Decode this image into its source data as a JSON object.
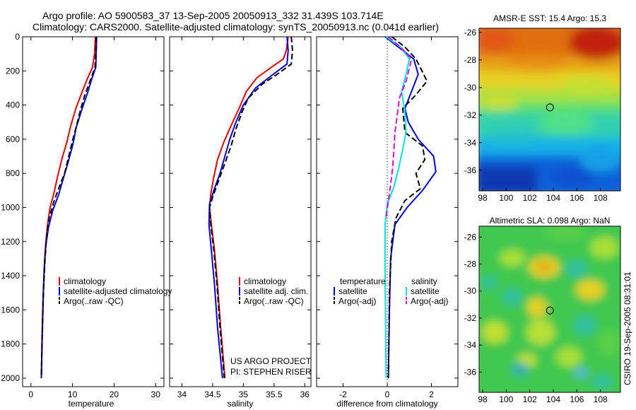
{
  "header": {
    "line1": "Argo profile: AO 5900583_37 13-Sep-2005 20050913_332 31.439S 103.714E",
    "line2": "Climatology: CARS2000. Satellite-adjusted climatology: synTS_20050913.nc (0.041d earlier)"
  },
  "colors": {
    "climatology": "#e00000",
    "satellite": "#0000dd",
    "argo": "#000000",
    "sal_satellite": "#00e0e0",
    "sal_argo": "#e000e0"
  },
  "chart_data": [
    {
      "type": "line",
      "panel": "temperature",
      "xlabel": "temperature",
      "xlim": [
        -2,
        32
      ],
      "ylim": [
        2050,
        0
      ],
      "xticks": [
        "0",
        "10",
        "20",
        "30"
      ],
      "yticks": [
        "0",
        "200",
        "400",
        "600",
        "800",
        "1000",
        "1200",
        "1400",
        "1600",
        "1800",
        "2000"
      ],
      "legend": [
        "climatology",
        "satellite-adjusted climatology",
        "Argo(..raw -QC)"
      ],
      "series": [
        {
          "name": "climatology",
          "color": "red",
          "dash": "solid",
          "points": [
            [
              15.5,
              0
            ],
            [
              15.3,
              100
            ],
            [
              14.8,
              180
            ],
            [
              13.5,
              250
            ],
            [
              12.2,
              330
            ],
            [
              10.8,
              420
            ],
            [
              9.6,
              520
            ],
            [
              8.6,
              620
            ],
            [
              7.4,
              720
            ],
            [
              6.4,
              820
            ],
            [
              5.5,
              920
            ],
            [
              4.6,
              1000
            ],
            [
              4.0,
              1100
            ],
            [
              3.6,
              1200
            ],
            [
              3.3,
              1300
            ],
            [
              3.0,
              1500
            ],
            [
              2.8,
              1700
            ],
            [
              2.5,
              2000
            ]
          ]
        },
        {
          "name": "satellite-adjusted climatology",
          "color": "blue",
          "dash": "solid",
          "points": [
            [
              15.8,
              0
            ],
            [
              15.7,
              100
            ],
            [
              15.6,
              180
            ],
            [
              14.6,
              250
            ],
            [
              13.6,
              330
            ],
            [
              12.2,
              430
            ],
            [
              10.9,
              530
            ],
            [
              10.1,
              630
            ],
            [
              9.0,
              730
            ],
            [
              7.8,
              830
            ],
            [
              6.6,
              930
            ],
            [
              5.2,
              1020
            ],
            [
              4.2,
              1120
            ],
            [
              3.6,
              1220
            ],
            [
              3.2,
              1350
            ],
            [
              2.9,
              1550
            ],
            [
              2.7,
              1750
            ],
            [
              2.5,
              2000
            ]
          ]
        },
        {
          "name": "Argo(..raw -QC)",
          "color": "black",
          "dash": "dashed",
          "points": [
            [
              15.7,
              0
            ],
            [
              15.6,
              100
            ],
            [
              15.4,
              180
            ],
            [
              14.2,
              260
            ],
            [
              13.0,
              340
            ],
            [
              12.0,
              420
            ],
            [
              11.2,
              500
            ],
            [
              10.1,
              600
            ],
            [
              9.1,
              700
            ],
            [
              8.1,
              800
            ],
            [
              6.8,
              880
            ],
            [
              5.6,
              960
            ],
            [
              4.4,
              1060
            ],
            [
              3.8,
              1160
            ],
            [
              3.4,
              1300
            ],
            [
              3.0,
              1500
            ],
            [
              2.7,
              1750
            ],
            [
              2.5,
              2000
            ]
          ]
        }
      ]
    },
    {
      "type": "line",
      "panel": "salinity",
      "xlabel": "salinity",
      "xlim": [
        33.8,
        36.1
      ],
      "ylim": [
        2050,
        0
      ],
      "xticks": [
        "34",
        "34.5",
        "35",
        "35.5",
        "36"
      ],
      "legend": [
        "climatology",
        "satellite adj. clim.",
        "Argo(..raw -QC)"
      ],
      "annotation": [
        "US ARGO PROJECT",
        "PI: STEPHEN RISER"
      ],
      "series": [
        {
          "name": "climatology",
          "color": "red",
          "dash": "solid",
          "points": [
            [
              35.73,
              0
            ],
            [
              35.7,
              80
            ],
            [
              35.65,
              130
            ],
            [
              35.45,
              180
            ],
            [
              35.22,
              240
            ],
            [
              35.05,
              320
            ],
            [
              34.93,
              420
            ],
            [
              34.8,
              520
            ],
            [
              34.68,
              620
            ],
            [
              34.58,
              720
            ],
            [
              34.52,
              820
            ],
            [
              34.47,
              920
            ],
            [
              34.45,
              1000
            ],
            [
              34.48,
              1100
            ],
            [
              34.53,
              1250
            ],
            [
              34.58,
              1450
            ],
            [
              34.63,
              1700
            ],
            [
              34.7,
              2000
            ]
          ]
        },
        {
          "name": "satellite adj. clim.",
          "color": "blue",
          "dash": "solid",
          "points": [
            [
              35.71,
              0
            ],
            [
              35.73,
              80
            ],
            [
              35.71,
              160
            ],
            [
              35.45,
              230
            ],
            [
              35.2,
              300
            ],
            [
              35.0,
              400
            ],
            [
              34.88,
              500
            ],
            [
              34.78,
              600
            ],
            [
              34.7,
              700
            ],
            [
              34.62,
              800
            ],
            [
              34.52,
              900
            ],
            [
              34.45,
              980
            ],
            [
              34.44,
              1100
            ],
            [
              34.48,
              1250
            ],
            [
              34.53,
              1450
            ],
            [
              34.58,
              1700
            ],
            [
              34.66,
              2000
            ]
          ]
        },
        {
          "name": "Argo(..raw -QC)",
          "color": "black",
          "dash": "dashed",
          "points": [
            [
              35.78,
              0
            ],
            [
              35.8,
              80
            ],
            [
              35.78,
              160
            ],
            [
              35.55,
              220
            ],
            [
              35.3,
              280
            ],
            [
              35.08,
              360
            ],
            [
              34.98,
              440
            ],
            [
              34.88,
              540
            ],
            [
              34.8,
              640
            ],
            [
              34.7,
              740
            ],
            [
              34.6,
              840
            ],
            [
              34.5,
              940
            ],
            [
              34.45,
              1000
            ],
            [
              34.47,
              1100
            ],
            [
              34.52,
              1250
            ],
            [
              34.57,
              1450
            ],
            [
              34.62,
              1700
            ],
            [
              34.69,
              2000
            ]
          ]
        }
      ]
    },
    {
      "type": "line",
      "panel": "difference",
      "xlabel": "difference from climatology",
      "xlim": [
        -3.2,
        3.2
      ],
      "ylim": [
        2050,
        0
      ],
      "xticks": [
        "-2",
        "0",
        "2"
      ],
      "legend_groups": [
        {
          "heading": "temperature",
          "items": [
            "satellite",
            "Argo(-adj)"
          ]
        },
        {
          "heading": "salinity",
          "items": [
            "satellite",
            "Argo(-adj)"
          ]
        }
      ],
      "series": [
        {
          "name": "temperature satellite",
          "color": "blue",
          "dash": "solid",
          "points": [
            [
              -0.1,
              0
            ],
            [
              0.5,
              60
            ],
            [
              1.2,
              130
            ],
            [
              1.4,
              220
            ],
            [
              1.1,
              320
            ],
            [
              0.8,
              420
            ],
            [
              0.95,
              500
            ],
            [
              1.4,
              600
            ],
            [
              2.1,
              700
            ],
            [
              2.2,
              790
            ],
            [
              1.6,
              900
            ],
            [
              0.9,
              1000
            ],
            [
              0.35,
              1100
            ],
            [
              0.15,
              1300
            ],
            [
              0.1,
              1600
            ],
            [
              0.05,
              2000
            ]
          ]
        },
        {
          "name": "temperature Argo(-adj)",
          "color": "black",
          "dash": "dashed",
          "points": [
            [
              0.2,
              0
            ],
            [
              0.8,
              60
            ],
            [
              1.3,
              130
            ],
            [
              1.8,
              260
            ],
            [
              1.3,
              340
            ],
            [
              0.7,
              420
            ],
            [
              0.8,
              560
            ],
            [
              1.6,
              640
            ],
            [
              1.7,
              720
            ],
            [
              1.3,
              800
            ],
            [
              1.5,
              890
            ],
            [
              0.8,
              960
            ],
            [
              0.4,
              1060
            ],
            [
              0.2,
              1200
            ],
            [
              0.1,
              1500
            ],
            [
              0.05,
              2000
            ]
          ]
        },
        {
          "name": "salinity satellite",
          "color": "cyan",
          "dash": "solid",
          "points": [
            [
              -0.05,
              0
            ],
            [
              0.6,
              60
            ],
            [
              1.0,
              130
            ],
            [
              0.85,
              220
            ],
            [
              0.65,
              320
            ],
            [
              0.8,
              440
            ],
            [
              0.85,
              560
            ],
            [
              0.7,
              660
            ],
            [
              0.5,
              780
            ],
            [
              0.3,
              880
            ],
            [
              0.0,
              980
            ],
            [
              -0.1,
              1100
            ],
            [
              -0.1,
              1400
            ],
            [
              -0.05,
              2000
            ]
          ]
        },
        {
          "name": "salinity Argo(-adj)",
          "color": "magenta",
          "dash": "dashed",
          "points": [
            [
              0.05,
              0
            ],
            [
              0.6,
              60
            ],
            [
              1.1,
              130
            ],
            [
              0.85,
              260
            ],
            [
              0.55,
              360
            ],
            [
              0.45,
              460
            ],
            [
              0.35,
              560
            ],
            [
              0.3,
              660
            ],
            [
              0.25,
              760
            ],
            [
              0.15,
              870
            ],
            [
              0.05,
              960
            ],
            [
              -0.05,
              1060
            ]
          ]
        }
      ]
    },
    {
      "type": "heatmap",
      "panel": "sst-map",
      "title": "AMSR-E SST: 15.4 Argo: 15.3",
      "xlim": [
        97.7,
        109.7
      ],
      "ylim": [
        -37.5,
        -25.7
      ],
      "xticks": [
        "98",
        "100",
        "102",
        "104",
        "106",
        "108"
      ],
      "yticks": [
        "-26",
        "-28",
        "-30",
        "-32",
        "-34",
        "-36"
      ],
      "marker": [
        103.714,
        -31.439
      ]
    },
    {
      "type": "heatmap",
      "panel": "sla-map",
      "title": "Altimetric SLA: 0.098 Argo: NaN",
      "xlim": [
        97.7,
        109.7
      ],
      "ylim": [
        -37.5,
        -25.2
      ],
      "xticks": [
        "98",
        "100",
        "102",
        "104",
        "106",
        "108"
      ],
      "yticks": [
        "-26",
        "-28",
        "-30",
        "-32",
        "-34",
        "-36"
      ],
      "marker": [
        103.714,
        -31.439
      ]
    }
  ],
  "side_label": "CSIRO 19-Sep-2005 08:31:01"
}
